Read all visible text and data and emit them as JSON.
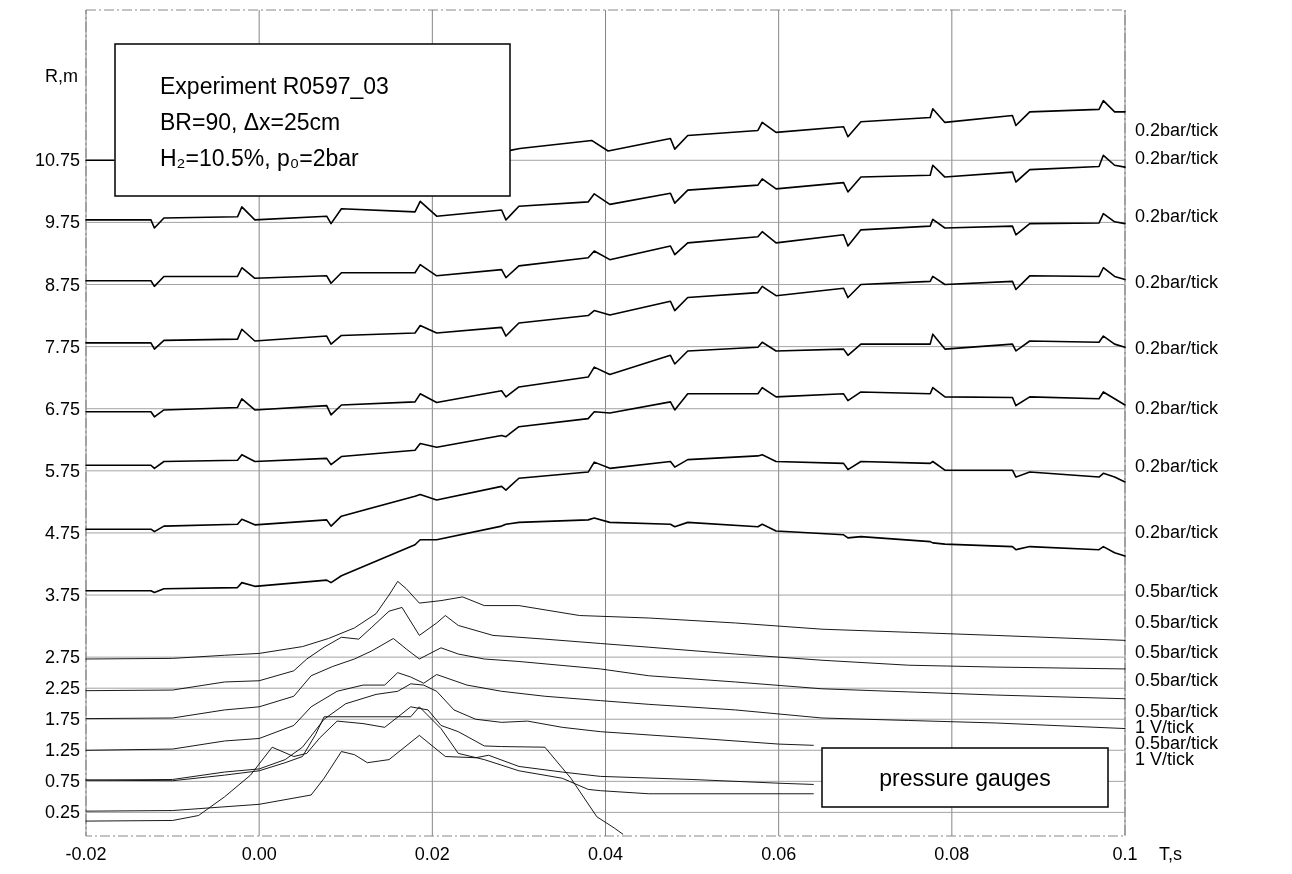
{
  "chart_data": {
    "type": "line",
    "xlabel": "T,s",
    "ylabel": "R,m",
    "xlim": [
      -0.02,
      0.1
    ],
    "ylim": [
      -0.13,
      13.17
    ],
    "xticks": [
      -0.02,
      {
        "value": 0,
        "label": "0.00"
      },
      0.02,
      0.04,
      0.06,
      0.08,
      0.1
    ],
    "yticks": [
      0.25,
      0.75,
      1.25,
      1.75,
      2.25,
      2.75,
      3.75,
      4.75,
      5.75,
      6.75,
      7.75,
      8.75,
      9.75,
      10.75
    ],
    "grid": true,
    "x": [
      -0.02,
      -0.0125,
      -0.0121,
      -0.011,
      -0.0025,
      -0.002,
      -0.0005,
      0.0078,
      0.0083,
      0.0095,
      0.018,
      0.0186,
      0.0205,
      0.028,
      0.0285,
      0.03,
      0.038,
      0.0387,
      0.0405,
      0.0475,
      0.048,
      0.0495,
      0.0576,
      0.0581,
      0.0597,
      0.0675,
      0.068,
      0.0695,
      0.0775,
      0.0778,
      0.0792,
      0.087,
      0.0874,
      0.089,
      0.097,
      0.0975,
      0.0988,
      0.1
    ],
    "series": [
      {
        "color": "#000000",
        "x": [
          -0.02,
          -0.0168,
          0.0,
          0.029,
          0.0301,
          0.0384,
          0.0403,
          0.0475,
          0.048,
          0.0495,
          0.0576,
          0.0581,
          0.0597,
          0.0675,
          0.068,
          0.0695,
          0.0775,
          0.0778,
          0.0792,
          0.087,
          0.0874,
          0.089,
          0.097,
          0.0975,
          0.0988,
          0.1
        ],
        "values": [
          10.75,
          10.75,
          null,
          10.91,
          10.94,
          11.07,
          10.9,
          11.1,
          10.93,
          11.15,
          11.23,
          11.36,
          11.2,
          11.29,
          11.13,
          11.37,
          11.44,
          11.58,
          11.36,
          11.47,
          11.31,
          11.53,
          11.57,
          11.71,
          11.53,
          11.53
        ]
      },
      {
        "color": "#000000",
        "values": [
          9.79,
          9.79,
          9.66,
          9.82,
          9.84,
          10.0,
          9.79,
          9.85,
          9.73,
          9.97,
          9.92,
          10.09,
          9.85,
          9.95,
          9.79,
          10.01,
          10.08,
          10.21,
          10.04,
          10.22,
          10.06,
          10.27,
          10.35,
          10.45,
          10.29,
          10.39,
          10.24,
          10.48,
          10.51,
          10.67,
          10.48,
          10.56,
          10.4,
          10.6,
          10.65,
          10.83,
          10.67,
          10.64
        ]
      },
      {
        "color": "#000000",
        "values": [
          8.81,
          8.81,
          8.72,
          8.88,
          8.88,
          9.02,
          8.85,
          8.89,
          8.77,
          8.94,
          8.94,
          9.07,
          8.89,
          8.99,
          8.86,
          9.05,
          9.18,
          9.29,
          9.15,
          9.37,
          9.23,
          9.42,
          9.52,
          9.6,
          9.42,
          9.55,
          9.37,
          9.63,
          9.69,
          9.8,
          9.66,
          9.69,
          9.55,
          9.73,
          9.74,
          9.89,
          9.76,
          9.73
        ]
      },
      {
        "color": "#000000",
        "values": [
          7.81,
          7.81,
          7.71,
          7.85,
          7.87,
          8.03,
          7.84,
          7.92,
          7.79,
          7.93,
          7.97,
          8.09,
          7.97,
          8.06,
          7.92,
          8.13,
          8.25,
          8.33,
          8.26,
          8.48,
          8.33,
          8.54,
          8.62,
          8.72,
          8.57,
          8.69,
          8.54,
          8.75,
          8.8,
          8.88,
          8.75,
          8.8,
          8.67,
          8.89,
          8.88,
          9.02,
          8.88,
          8.83
        ]
      },
      {
        "color": "#000000",
        "values": [
          6.7,
          6.7,
          6.62,
          6.73,
          6.77,
          6.91,
          6.73,
          6.8,
          6.65,
          6.81,
          6.86,
          6.99,
          6.85,
          7.04,
          6.94,
          7.1,
          7.26,
          7.42,
          7.3,
          7.61,
          7.47,
          7.68,
          7.74,
          7.82,
          7.68,
          7.71,
          7.61,
          7.79,
          7.79,
          7.95,
          7.71,
          7.79,
          7.68,
          7.84,
          7.82,
          7.92,
          7.79,
          7.74
        ]
      },
      {
        "color": "#000000",
        "values": [
          5.84,
          5.84,
          5.79,
          5.9,
          5.92,
          6.01,
          5.9,
          5.95,
          5.85,
          5.98,
          6.08,
          6.19,
          6.13,
          6.32,
          6.3,
          6.46,
          6.59,
          6.7,
          6.68,
          6.86,
          6.73,
          6.99,
          6.99,
          7.09,
          6.94,
          6.99,
          6.88,
          7.02,
          6.99,
          7.09,
          6.94,
          6.93,
          6.8,
          6.94,
          6.91,
          7.02,
          6.91,
          6.81
        ]
      },
      {
        "color": "#000000",
        "values": [
          4.81,
          4.81,
          4.77,
          4.86,
          4.89,
          4.97,
          4.88,
          4.96,
          4.86,
          5.02,
          5.34,
          5.37,
          5.28,
          5.5,
          5.44,
          5.63,
          5.73,
          5.89,
          5.79,
          5.9,
          5.81,
          5.93,
          5.99,
          6.01,
          5.9,
          5.87,
          5.77,
          5.9,
          5.87,
          5.9,
          5.76,
          5.76,
          5.65,
          5.73,
          5.65,
          5.71,
          5.65,
          5.57
        ]
      },
      {
        "color": "#000000",
        "values": [
          3.82,
          3.82,
          3.79,
          3.85,
          3.87,
          3.95,
          3.89,
          3.99,
          3.95,
          4.06,
          4.56,
          4.64,
          4.64,
          4.86,
          4.89,
          4.92,
          4.96,
          4.99,
          4.92,
          4.89,
          4.85,
          4.92,
          4.85,
          4.89,
          4.78,
          4.72,
          4.67,
          4.69,
          4.61,
          4.59,
          4.57,
          4.53,
          4.48,
          4.53,
          4.48,
          4.53,
          4.43,
          4.38
        ]
      },
      {
        "color": "#000000",
        "x": [
          -0.02,
          -0.01,
          -0.004,
          0.0,
          0.005,
          0.008,
          0.011,
          0.0135,
          0.015,
          0.016,
          0.017,
          0.0185,
          0.021,
          0.0235,
          0.026,
          0.03,
          0.037,
          0.045,
          0.055,
          0.065,
          0.075,
          0.085,
          0.1
        ],
        "values": [
          2.72,
          2.73,
          2.78,
          2.81,
          2.92,
          3.05,
          3.22,
          3.45,
          3.75,
          3.97,
          3.85,
          3.62,
          3.66,
          3.72,
          3.58,
          3.58,
          3.42,
          3.38,
          3.3,
          3.2,
          3.15,
          3.1,
          3.02
        ]
      },
      {
        "color": "#000000",
        "x": [
          -0.02,
          -0.01,
          -0.004,
          0.0,
          0.004,
          0.0055,
          0.0075,
          0.0095,
          0.0115,
          0.013,
          0.015,
          0.0165,
          0.0185,
          0.0205,
          0.0215,
          0.023,
          0.027,
          0.033,
          0.0394,
          0.045,
          0.055,
          0.065,
          0.075,
          0.085,
          0.1
        ],
        "values": [
          2.21,
          2.22,
          2.35,
          2.37,
          2.53,
          2.72,
          2.91,
          3.07,
          3.04,
          3.23,
          3.49,
          3.55,
          3.1,
          3.3,
          3.42,
          3.26,
          3.1,
          3.04,
          2.97,
          2.91,
          2.8,
          2.7,
          2.62,
          2.59,
          2.56
        ]
      },
      {
        "color": "#000000",
        "x": [
          -0.02,
          -0.01,
          -0.004,
          0.0,
          0.004,
          0.006,
          0.0085,
          0.011,
          0.013,
          0.0155,
          0.017,
          0.0185,
          0.021,
          0.023,
          0.026,
          0.03,
          0.0394,
          0.045,
          0.055,
          0.065,
          0.075,
          0.085,
          0.1
        ],
        "values": [
          1.76,
          1.77,
          1.9,
          1.95,
          2.12,
          2.45,
          2.6,
          2.72,
          2.85,
          3.05,
          2.88,
          2.72,
          2.9,
          2.8,
          2.72,
          2.68,
          2.56,
          2.45,
          2.35,
          2.24,
          2.19,
          2.14,
          2.08
        ]
      },
      {
        "color": "#000000",
        "x": [
          -0.02,
          -0.01,
          -0.004,
          0.0,
          0.004,
          0.006,
          0.009,
          0.012,
          0.0145,
          0.016,
          0.0175,
          0.019,
          0.0205,
          0.024,
          0.028,
          0.033,
          0.0394,
          0.045,
          0.055,
          0.065,
          0.075,
          0.085,
          0.1
        ],
        "values": [
          1.25,
          1.27,
          1.4,
          1.44,
          1.65,
          1.95,
          2.2,
          2.3,
          2.3,
          2.5,
          2.43,
          2.33,
          2.47,
          2.3,
          2.2,
          2.12,
          2.05,
          1.99,
          1.9,
          1.77,
          1.73,
          1.69,
          1.6
        ]
      },
      {
        "color": "#000000",
        "x": [
          -0.02,
          -0.01,
          -0.004,
          0.0,
          0.003,
          0.005,
          0.0075,
          0.01,
          0.0135,
          0.016,
          0.0175,
          0.019,
          0.0205,
          0.0225,
          0.025,
          0.028,
          0.031,
          0.035,
          0.0394,
          0.05,
          0.06,
          0.064
        ],
        "values": [
          0.77,
          0.78,
          0.9,
          0.95,
          1.1,
          1.3,
          1.75,
          2.0,
          2.15,
          2.2,
          2.32,
          2.3,
          2.2,
          1.9,
          1.75,
          1.7,
          1.72,
          1.62,
          1.55,
          1.45,
          1.35,
          1.33
        ]
      },
      {
        "color": "#000000",
        "x": [
          -0.02,
          -0.01,
          -0.004,
          0.0,
          0.003,
          0.005,
          0.0065,
          0.0075,
          0.0175,
          0.0185,
          0.021,
          0.023,
          0.026,
          0.03,
          0.035,
          0.038,
          0.0394,
          0.045,
          0.064
        ],
        "values": [
          0.77,
          0.76,
          0.85,
          0.92,
          1.05,
          1.15,
          1.5,
          1.79,
          1.79,
          1.95,
          1.6,
          1.2,
          1.1,
          0.92,
          0.8,
          0.62,
          0.6,
          0.55,
          0.55
        ]
      },
      {
        "color": "#000000",
        "x": [
          -0.02,
          -0.01,
          0.0,
          0.006,
          0.0075,
          0.0095,
          0.011,
          0.0125,
          0.015,
          0.0185,
          0.0215,
          0.025,
          0.0265,
          0.03,
          0.035,
          0.0394,
          0.05,
          0.06,
          0.064
        ],
        "values": [
          0.27,
          0.28,
          0.38,
          0.53,
          0.8,
          1.23,
          1.18,
          1.05,
          1.1,
          1.49,
          1.15,
          1.13,
          1.17,
          0.99,
          0.9,
          0.83,
          0.78,
          0.72,
          0.7
        ]
      },
      {
        "color": "#000000",
        "x": [
          -0.02,
          -0.01,
          -0.007,
          -0.004,
          -0.001,
          0.0015,
          0.004,
          0.0055,
          0.007,
          0.009,
          0.012,
          0.0145,
          0.0175,
          0.0195,
          0.021,
          0.023,
          0.026,
          0.028,
          0.033,
          0.036,
          0.039,
          0.041,
          0.042
        ],
        "values": [
          0.11,
          0.12,
          0.2,
          0.5,
          0.85,
          1.3,
          1.15,
          1.2,
          1.45,
          1.72,
          1.68,
          1.62,
          1.95,
          1.9,
          1.65,
          1.55,
          1.32,
          1.31,
          1.3,
          0.8,
          0.18,
          0.0,
          -0.1
        ]
      }
    ],
    "annotations": [
      "Experiment R0597_03",
      "BR=90, Δx=25cm",
      "H₂=10.5%, p₀=2bar",
      "pressure gauges",
      "0.2bar/tick",
      "0.2bar/tick",
      "0.2bar/tick",
      "0.2bar/tick",
      "0.2bar/tick",
      "0.2bar/tick",
      "0.2bar/tick",
      "0.2bar/tick",
      "0.5bar/tick",
      "0.5bar/tick",
      "0.5bar/tick",
      "0.5bar/tick",
      "0.5bar/tick",
      "1 V/tick",
      "0.5bar/tick",
      "1 V/tick"
    ]
  }
}
